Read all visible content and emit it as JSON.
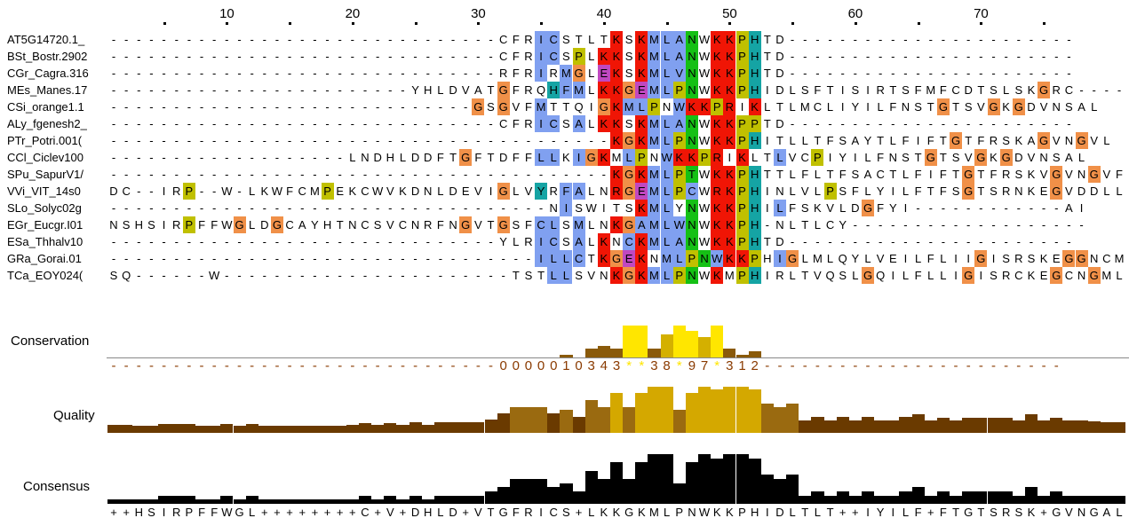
{
  "ruler": {
    "ticks": [
      "10",
      "20",
      "30",
      "40",
      "50",
      "60",
      "70"
    ],
    "tick_columns": [
      10,
      20,
      30,
      40,
      50,
      60,
      70
    ]
  },
  "sequences": [
    {
      "name": "AT5G14720.1_",
      "residues": "-------------------------------CFRICSTLTKSKMLANWKKPHTD-----------------------"
    },
    {
      "name": "BSt_Bostr.2902",
      "residues": "-------------------------------CFRICSPLKKSKMLANWKKPHTD-----------------------"
    },
    {
      "name": "CGr_Cagra.316",
      "residues": "-------------------------------RFRIRMGLEKSKMLVNWKKPHTD-----------------------"
    },
    {
      "name": "MEs_Manes.17",
      "residues": "------------------------YHLDVATGFRQHFMLKKGEMLPNWKKPHIDLSFTISIRTSFMFCDTSLSKGRC----"
    },
    {
      "name": "CSi_orange1.1",
      "residues": "-----------------------------GSGVFMTTQIGKMLPNWKKPRIKLTLMCLIYILFNSTGTSVGKGDVNSAL"
    },
    {
      "name": "ALy_fgenesh2_",
      "residues": "-------------------------------CFRICSALKKSKMLANWKKPPTD-----------------------"
    },
    {
      "name": "PTr_Potri.001(",
      "residues": "----------------------------------------KGKMLPNWKKPHITLLTFSAYTLFIFTGTFRSKAGVNGVL"
    },
    {
      "name": "CCl_Ciclev100",
      "residues": "-------------------LNDHLDDFTGFTDFFLLKIGKMLPNWKKPRIKLTLVCPIYILFNSTGTSVGKGDVNSAL"
    },
    {
      "name": "SPu_SapurV1/",
      "residues": "----------------------------------------KGKMLPTWKKPHTTLFLTFSACTLFIFTGTFRSKVGVNGVF"
    },
    {
      "name": "VVi_VIT_14s0",
      "residues": "DC--IRP--W-LKWFCMPEKCWVKDNLDEVIGLVYRFALNRGEMLPCWRKPHINLVLPSFLYILFTFSGTSRNKEGVDDLL"
    },
    {
      "name": "SLo_Solyc02g",
      "residues": "-----------------------------------NISWITSKMLYNWKKPHILFSKVLDGFYI------------AI"
    },
    {
      "name": "EGr_Eucgr.I01",
      "residues": "NSHSIRPFFWGLDGCAYHTNCSVCNRFNGVTGSFCLSMLNKGAMLWNWKKPH-NLTLCY-------------------"
    },
    {
      "name": "ESa_Thhalv10",
      "residues": "-------------------------------YLRICSALKNCKMLANWKKPHTD-----------------------"
    },
    {
      "name": "GRa_Gorai.01",
      "residues": "----------------------------------ILLCTKGEKNMLPNWKKPHIGLMLQYLVEILFLIIGISRSKEGGNCML"
    },
    {
      "name": "TCa_EOY024(",
      "residues": "SQ------W-----------------------TSTLLSVNKGKMLPNWKMPHIRLTVQSLGQILFLLIGISRCKEGCNGML"
    }
  ],
  "tracks": {
    "conservation_label": "Conservation",
    "quality_label": "Quality",
    "consensus_label": "Consensus"
  },
  "conservation_string": "-------------------------------0000010343**38*97*312------------------------",
  "consensus_string": "++HSIRPFFWGL++++++++C+V+DHLD+VTGFRICS+LKKGKMLPNWKKPHIDLTLT++IYILF+FTGTSRSK+GVNGAL",
  "colors": {
    "hydrophobic": "#80a0f0",
    "positive": "#f01505",
    "negative": "#c048c0",
    "polar": "#15c015",
    "cysteine": "#f08080",
    "glycine": "#f09048",
    "proline": "#c0c000",
    "aromatic": "#15a4a4",
    "conservation_high": "#ffe600",
    "conservation_low": "#6a3a00",
    "consensus": "#000000"
  }
}
